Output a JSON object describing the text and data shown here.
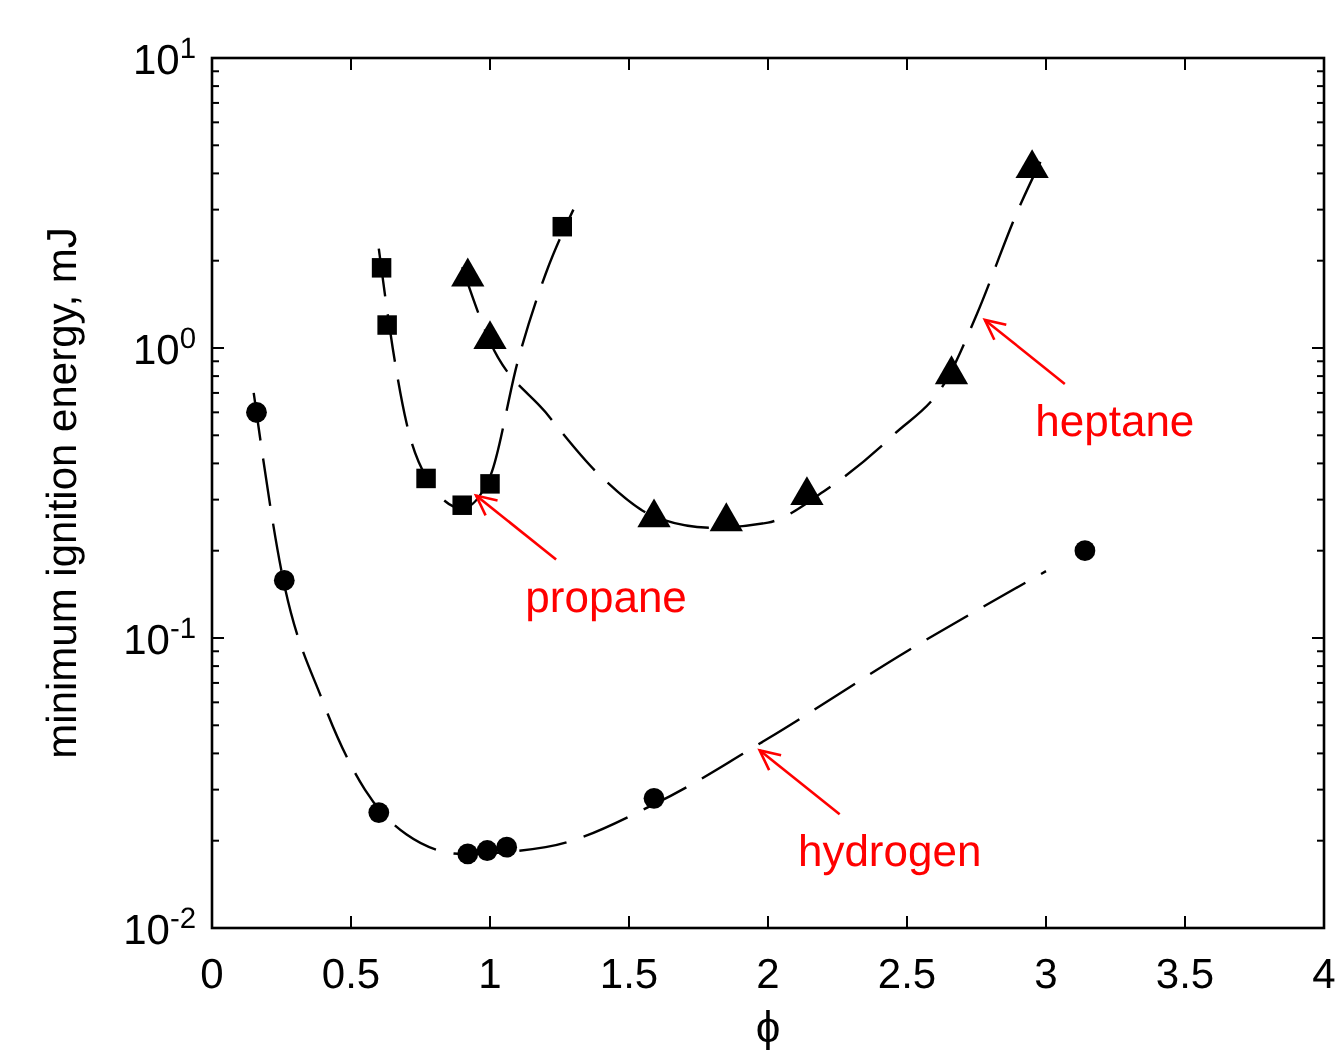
{
  "chart_data": {
    "type": "scatter",
    "xlabel": "ϕ",
    "ylabel": "minimum ignition energy, mJ",
    "log": "y",
    "grid": false,
    "xlim": [
      0,
      4
    ],
    "xticks": [
      0,
      0.5,
      1,
      1.5,
      2,
      2.5,
      3,
      3.5,
      4
    ],
    "ylim": [
      0.01,
      10
    ],
    "yticks": [
      {
        "value": 0.01,
        "label": "10$^{-2}$"
      },
      {
        "value": 0.02,
        "label": null
      },
      {
        "value": 0.03,
        "label": null
      },
      {
        "value": 0.04,
        "label": null
      },
      {
        "value": 0.05,
        "label": null
      },
      {
        "value": 0.06,
        "label": null
      },
      {
        "value": 0.07,
        "label": null
      },
      {
        "value": 0.08,
        "label": null
      },
      {
        "value": 0.09,
        "label": null
      },
      {
        "value": 0.1,
        "label": "10$^{-1}$"
      },
      {
        "value": 0.2,
        "label": null
      },
      {
        "value": 0.3,
        "label": null
      },
      {
        "value": 0.4,
        "label": null
      },
      {
        "value": 0.5,
        "label": null
      },
      {
        "value": 0.6,
        "label": null
      },
      {
        "value": 0.7,
        "label": null
      },
      {
        "value": 0.8,
        "label": null
      },
      {
        "value": 0.9,
        "label": null
      },
      {
        "value": 1,
        "label": "10$^{0}$"
      },
      {
        "value": 2,
        "label": null
      },
      {
        "value": 3,
        "label": null
      },
      {
        "value": 4,
        "label": null
      },
      {
        "value": 5,
        "label": null
      },
      {
        "value": 6,
        "label": null
      },
      {
        "value": 7,
        "label": null
      },
      {
        "value": 8,
        "label": null
      },
      {
        "value": 9,
        "label": null
      },
      {
        "value": 10,
        "label": "10$^{1}$"
      }
    ],
    "series": [
      {
        "type": "line",
        "color": "#000000",
        "line_style": "dashed",
        "marker": "none",
        "x": [
          0.15,
          0.25,
          0.4,
          0.55,
          0.7,
          0.9,
          1.2,
          1.6,
          2.0,
          2.5,
          3.0
        ],
        "values": [
          0.7,
          0.17,
          0.06,
          0.03,
          0.021,
          0.018,
          0.019,
          0.027,
          0.045,
          0.09,
          0.17
        ]
      },
      {
        "type": "line",
        "color": "#000000",
        "line_style": "dashed",
        "marker": "none",
        "x": [
          0.6,
          0.65,
          0.7,
          0.77,
          0.9,
          1.0,
          1.1,
          1.2,
          1.3
        ],
        "values": [
          2.2,
          1.0,
          0.55,
          0.36,
          0.28,
          0.36,
          0.9,
          1.8,
          3.0
        ]
      },
      {
        "type": "line",
        "color": "#000000",
        "line_style": "dashed",
        "marker": "none",
        "x": [
          0.9,
          1.0,
          1.2,
          1.4,
          1.6,
          1.8,
          2.0,
          2.2,
          2.45,
          2.65,
          2.75,
          2.9,
          3.0
        ],
        "values": [
          1.9,
          1.05,
          0.6,
          0.36,
          0.26,
          0.24,
          0.25,
          0.32,
          0.5,
          0.8,
          1.3,
          3.0,
          4.8
        ]
      },
      {
        "color": "#000000",
        "marker": "circle",
        "x": [
          0.16,
          0.26,
          0.6,
          0.92,
          0.99,
          1.06,
          1.59,
          3.14
        ],
        "values": [
          0.6,
          0.158,
          0.025,
          0.018,
          0.0185,
          0.019,
          0.028,
          0.2
        ]
      },
      {
        "color": "#000000",
        "marker": "square",
        "x": [
          0.61,
          0.63,
          0.77,
          0.9,
          1.0,
          1.26
        ],
        "values": [
          1.89,
          1.2,
          0.355,
          0.287,
          0.34,
          2.62
        ]
      },
      {
        "color": "#000000",
        "marker": "triangle",
        "x": [
          0.92,
          1.0,
          1.59,
          1.85,
          2.14,
          2.66,
          2.95
        ],
        "values": [
          1.76,
          1.07,
          0.26,
          0.252,
          0.31,
          0.81,
          4.16
        ]
      }
    ],
    "annotations": [
      {
        "text": "propane",
        "x": 0.95,
        "y": 0.31
      },
      {
        "text": "heptane",
        "x": 2.78,
        "y": 1.25
      },
      {
        "text": "hydrogen",
        "x": 1.97,
        "y": 0.041
      }
    ]
  }
}
